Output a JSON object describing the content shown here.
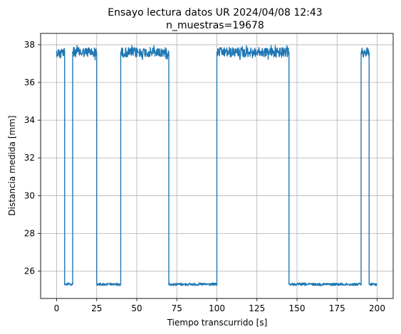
{
  "chart_data": {
    "type": "line",
    "title": "Ensayo lectura datos UR 2024/04/08 12:43",
    "subtitle": "n_muestras=19678",
    "xlabel": "Tiempo transcurrido [s]",
    "ylabel": "Distancia medida [mm]",
    "xlim": [
      -10,
      210
    ],
    "ylim": [
      24.55,
      38.6
    ],
    "xticks": [
      "0",
      "25",
      "50",
      "75",
      "100",
      "125",
      "150",
      "175",
      "200"
    ],
    "yticks": [
      "26",
      "28",
      "30",
      "32",
      "34",
      "36",
      "38"
    ],
    "grid": true,
    "color": "#1f77b4",
    "series": [
      {
        "segments": [
          {
            "x_start": 0,
            "x_end": 5,
            "level": "high",
            "mean": 37.6,
            "min": 37.1,
            "max": 37.9
          },
          {
            "x_start": 5,
            "x_end": 10,
            "level": "low",
            "mean": 25.3,
            "min": 25.2,
            "max": 25.4
          },
          {
            "x_start": 10,
            "x_end": 25,
            "level": "high",
            "mean": 37.6,
            "min": 37.1,
            "max": 37.95
          },
          {
            "x_start": 25,
            "x_end": 40,
            "level": "low",
            "mean": 25.3,
            "min": 25.2,
            "max": 25.4
          },
          {
            "x_start": 40,
            "x_end": 70,
            "level": "high",
            "mean": 37.6,
            "min": 37.1,
            "max": 37.95
          },
          {
            "x_start": 70,
            "x_end": 100,
            "level": "low",
            "mean": 25.3,
            "min": 25.2,
            "max": 25.4
          },
          {
            "x_start": 100,
            "x_end": 145,
            "level": "high",
            "mean": 37.6,
            "min": 37.1,
            "max": 37.95
          },
          {
            "x_start": 145,
            "x_end": 190,
            "level": "low",
            "mean": 25.3,
            "min": 25.2,
            "max": 25.4
          },
          {
            "x_start": 190,
            "x_end": 195,
            "level": "high",
            "mean": 37.6,
            "min": 37.1,
            "max": 37.95
          },
          {
            "x_start": 195,
            "x_end": 200,
            "level": "low",
            "mean": 25.3,
            "min": 25.2,
            "max": 25.4
          }
        ]
      }
    ]
  }
}
